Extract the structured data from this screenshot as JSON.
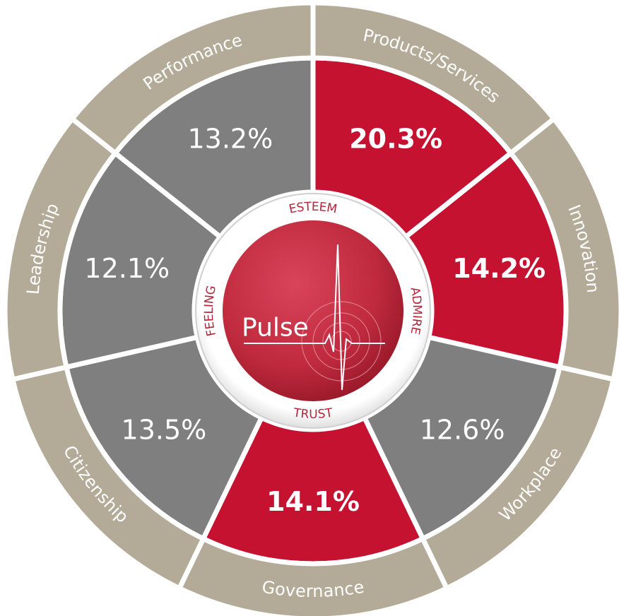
{
  "chart_data": {
    "type": "radial",
    "categories": [
      "Products/Services",
      "Innovation",
      "Workplace",
      "Governance",
      "Citizenship",
      "Leadership",
      "Performance"
    ],
    "values": [
      20.3,
      14.2,
      12.6,
      14.1,
      13.5,
      12.1,
      13.2
    ],
    "value_labels": [
      "20.3%",
      "14.2%",
      "12.6%",
      "14.1%",
      "13.5%",
      "12.1%",
      "13.2%"
    ],
    "colors": [
      "#c41230",
      "#c41230",
      "#7f7f7f",
      "#c41230",
      "#7f7f7f",
      "#7f7f7f",
      "#7f7f7f"
    ],
    "highlight_color": "#c41230",
    "ring_color": "#b3aa98",
    "center_labels": [
      "ESTEEM",
      "ADMIRE",
      "TRUST",
      "FEELING"
    ],
    "center_title": "Pulse"
  }
}
